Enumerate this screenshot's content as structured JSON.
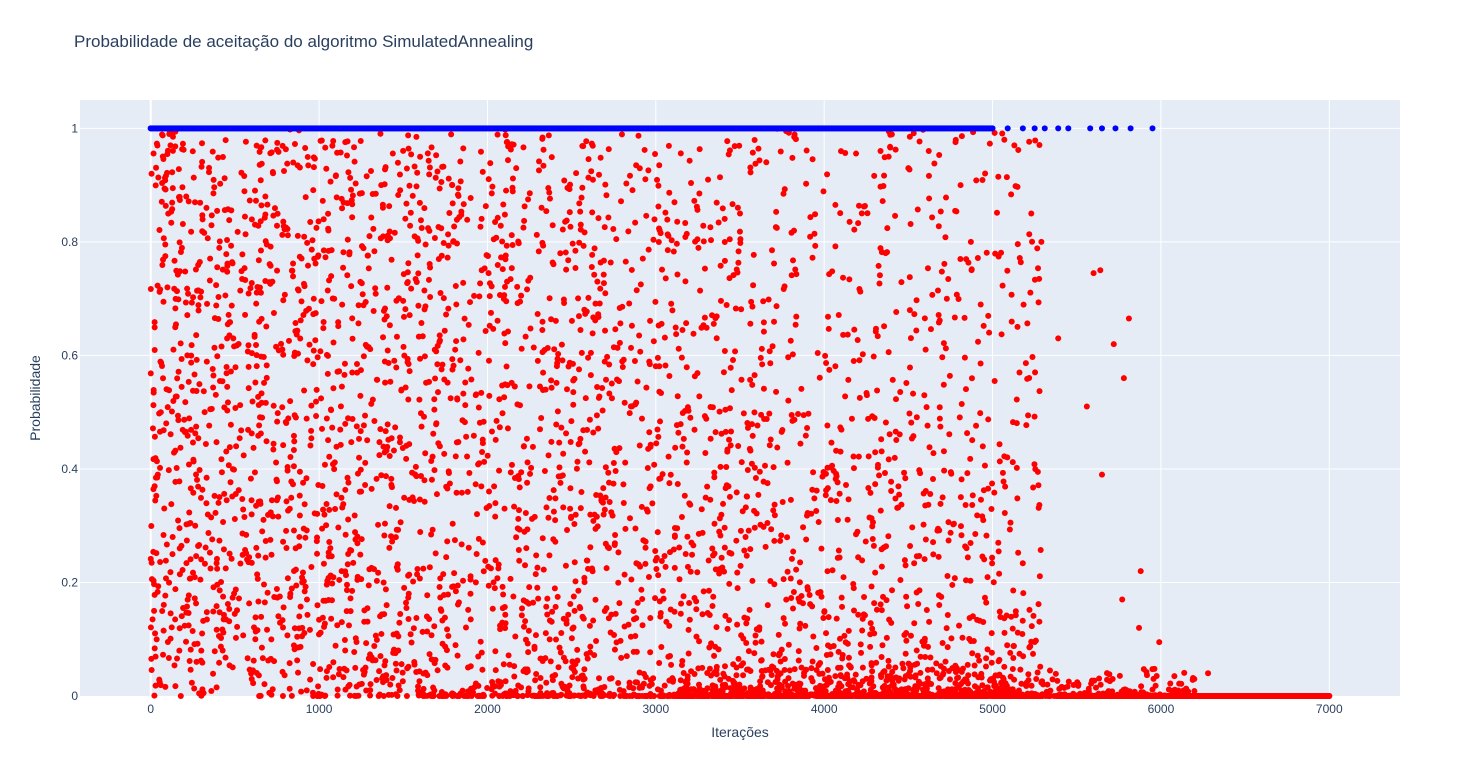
{
  "chart_data": {
    "type": "scatter",
    "title": "Probabilidade de aceitação do algoritmo SimulatedAnnealing",
    "xlabel": "Iterações",
    "ylabel": "Probabilidade",
    "xlim": [
      -420,
      7420
    ],
    "ylim": [
      0,
      1.05
    ],
    "x_ticks": [
      0,
      1000,
      2000,
      3000,
      4000,
      5000,
      6000,
      7000
    ],
    "y_ticks": [
      0,
      0.2,
      0.4,
      0.6,
      0.8,
      1
    ],
    "grid": true,
    "background": "#e5ecf6",
    "series": [
      {
        "color": "#ff0000",
        "x_range": [
          0,
          7000
        ],
        "y_range": [
          0,
          1
        ],
        "description_points": "Dense scatter of acceptance probabilities; uniform 0-1 spread for early iterations, concentrating near 0 after ~3000, flat at 0 beyond ~6300",
        "sample": [
          {
            "x": 5,
            "y": 0.92
          },
          {
            "x": 20,
            "y": 0.15
          },
          {
            "x": 60,
            "y": 0.5
          },
          {
            "x": 110,
            "y": 0.99
          },
          {
            "x": 170,
            "y": 0.08
          },
          {
            "x": 600,
            "y": 0.03
          },
          {
            "x": 900,
            "y": 0.12
          },
          {
            "x": 1600,
            "y": 0.95
          },
          {
            "x": 2500,
            "y": 0.05
          },
          {
            "x": 3500,
            "y": 0.85
          },
          {
            "x": 4100,
            "y": 0.96
          },
          {
            "x": 4500,
            "y": 0.93
          },
          {
            "x": 5070,
            "y": 0.98
          },
          {
            "x": 5160,
            "y": 0.57
          },
          {
            "x": 5230,
            "y": 0.85
          },
          {
            "x": 5290,
            "y": 0.8
          },
          {
            "x": 5390,
            "y": 0.63
          },
          {
            "x": 5600,
            "y": 0.745
          },
          {
            "x": 5640,
            "y": 0.75
          },
          {
            "x": 5560,
            "y": 0.51
          },
          {
            "x": 5650,
            "y": 0.39
          },
          {
            "x": 5720,
            "y": 0.62
          },
          {
            "x": 5780,
            "y": 0.56
          },
          {
            "x": 5810,
            "y": 0.665
          },
          {
            "x": 5770,
            "y": 0.17
          },
          {
            "x": 5880,
            "y": 0.22
          },
          {
            "x": 5870,
            "y": 0.12
          },
          {
            "x": 5990,
            "y": 0.095
          },
          {
            "x": 6080,
            "y": 0.035
          },
          {
            "x": 6150,
            "y": 0.013
          },
          {
            "x": 6280,
            "y": 0.04
          },
          {
            "x": 7000,
            "y": 0.0
          }
        ]
      },
      {
        "color": "#0000ff",
        "x_range": [
          0,
          5950
        ],
        "y": 1.0,
        "description_points": "Accepted moves with probability 1; dense line from 0 to ~5000, sparser up to ~5950",
        "sample": [
          {
            "x": 0,
            "y": 1
          },
          {
            "x": 5000,
            "y": 1
          },
          {
            "x": 5090,
            "y": 1
          },
          {
            "x": 5180,
            "y": 1
          },
          {
            "x": 5250,
            "y": 1
          },
          {
            "x": 5310,
            "y": 1
          },
          {
            "x": 5390,
            "y": 1
          },
          {
            "x": 5450,
            "y": 1
          },
          {
            "x": 5580,
            "y": 1
          },
          {
            "x": 5650,
            "y": 1
          },
          {
            "x": 5730,
            "y": 1
          },
          {
            "x": 5820,
            "y": 1
          },
          {
            "x": 5950,
            "y": 1
          }
        ]
      }
    ]
  }
}
